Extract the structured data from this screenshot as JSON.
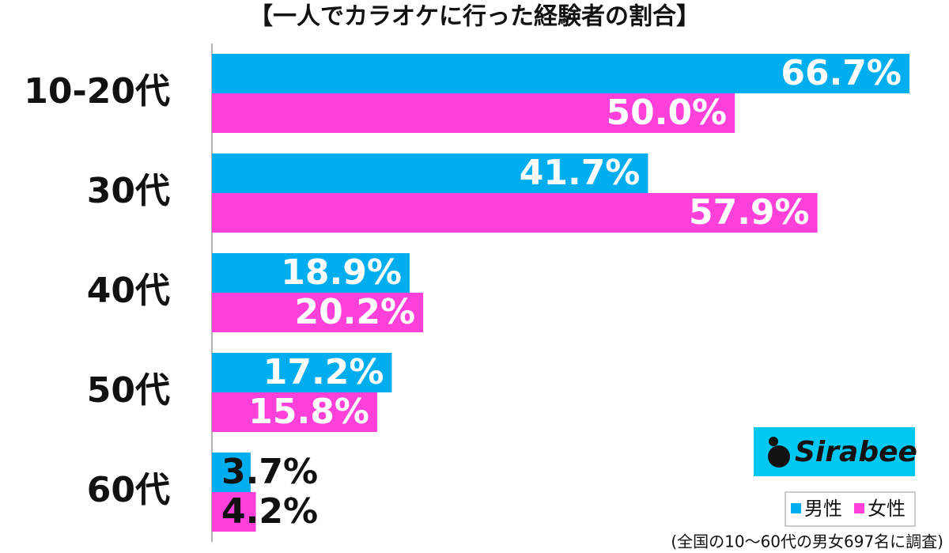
{
  "chart_data": {
    "type": "bar",
    "orientation": "horizontal",
    "title": "【一人でカラオケに行った経験者の割合】",
    "categories": [
      "10-20代",
      "30代",
      "40代",
      "50代",
      "60代"
    ],
    "series": [
      {
        "name": "男性",
        "color": "#00aeef",
        "values": [
          66.7,
          41.7,
          18.9,
          17.2,
          3.7
        ],
        "value_labels": [
          "66.7%",
          "41.7%",
          "18.9%",
          "17.2%",
          "3.7%"
        ]
      },
      {
        "name": "女性",
        "color": "#ff40d9",
        "values": [
          50.0,
          57.9,
          20.2,
          15.8,
          4.2
        ],
        "value_labels": [
          "50.0%",
          "57.9%",
          "20.2%",
          "15.8%",
          "4.2%"
        ]
      }
    ],
    "logo": "Sirabee",
    "note": "(全国の10～60代の男女697名に調査)"
  }
}
